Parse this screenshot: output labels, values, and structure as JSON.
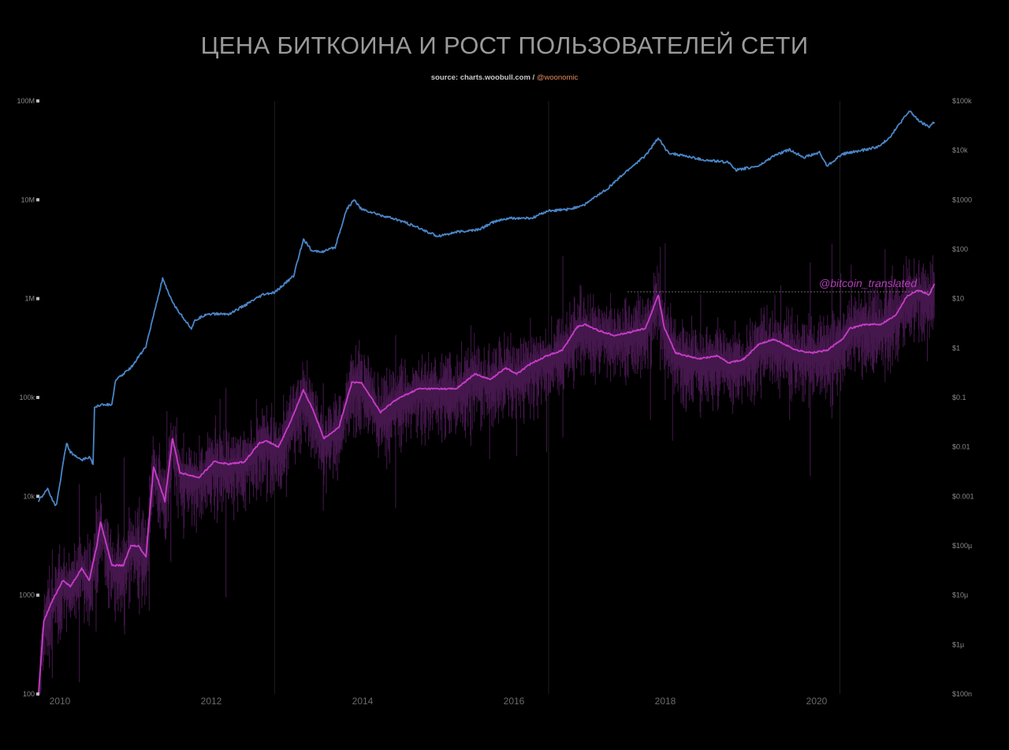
{
  "title": "ЦЕНА БИТКОИНА И РОСТ ПОЛЬЗОВАТЕЛЕЙ СЕТИ",
  "subtitle": {
    "source": "source: charts.woobull.com /",
    "handle": "@woonomic"
  },
  "watermark": "@bitcoin_translated",
  "colors": {
    "background": "#000000",
    "users_line": "#4a86c8",
    "price_line": "#c83cc8",
    "price_noise": "#4a1a52",
    "title": "#9a9a9a",
    "handle": "#e3875a"
  },
  "chart_data": {
    "type": "line",
    "title": "ЦЕНА БИТКОИНА И РОСТ ПОЛЬЗОВАТЕЛЕЙ СЕТИ",
    "x_ticks": [
      "2010",
      "2012",
      "2014",
      "2016",
      "2018",
      "2020"
    ],
    "y_left": {
      "scale": "log",
      "range": [
        100,
        100000000
      ],
      "ticks": [
        "100M",
        "10M",
        "1M",
        "100k",
        "10k",
        "1000",
        "100"
      ],
      "tick_values": [
        100000000,
        10000000,
        1000000,
        100000,
        10000,
        1000,
        100
      ]
    },
    "y_right": {
      "scale": "log",
      "range": [
        1e-07,
        100000
      ],
      "ticks": [
        "$100k",
        "$10k",
        "$1000",
        "$100",
        "$10",
        "$1",
        "$0.1",
        "$0.01",
        "$0.001",
        "$100µ",
        "$10µ",
        "$1µ",
        "$100n"
      ],
      "tick_values": [
        100000,
        10000,
        1000,
        100,
        10,
        1,
        0.1,
        0.01,
        0.001,
        0.0001,
        1e-05,
        1e-06,
        1e-07
      ]
    },
    "grid": false,
    "legend": "none",
    "series": [
      {
        "axis": "left",
        "x": [
          2009.78,
          2009.9,
          2010.0,
          2010.02,
          2010.15,
          2010.2,
          2010.35,
          2010.45,
          2010.5,
          2010.52,
          2010.6,
          2010.75,
          2010.8,
          2011.0,
          2011.2,
          2011.42,
          2011.5,
          2011.6,
          2011.8,
          2011.85,
          2012.0,
          2012.3,
          2012.5,
          2012.75,
          2012.9,
          2013.15,
          2013.28,
          2013.4,
          2013.55,
          2013.7,
          2013.85,
          2013.95,
          2014.05,
          2014.3,
          2014.6,
          2014.85,
          2015.05,
          2015.3,
          2015.6,
          2015.8,
          2016.0,
          2016.3,
          2016.5,
          2016.8,
          2017.0,
          2017.3,
          2017.6,
          2017.8,
          2017.97,
          2018.1,
          2018.3,
          2018.6,
          2018.9,
          2019.0,
          2019.3,
          2019.5,
          2019.7,
          2019.9,
          2020.1,
          2020.2,
          2020.4,
          2020.7,
          2020.9,
          2021.05,
          2021.2,
          2021.3,
          2021.35,
          2021.45,
          2021.55,
          2021.62
        ],
        "values": [
          9000,
          12000,
          8000,
          8500,
          35000,
          28000,
          23000,
          25000,
          21000,
          80000,
          85000,
          85000,
          150000,
          200000,
          330000,
          1600000,
          1100000,
          800000,
          500000,
          600000,
          700000,
          700000,
          850000,
          1100000,
          1150000,
          1700000,
          4000000,
          3000000,
          3000000,
          3300000,
          8000000,
          10000000,
          8000000,
          7000000,
          6000000,
          5000000,
          4300000,
          4700000,
          5000000,
          6000000,
          6500000,
          6500000,
          7700000,
          8000000,
          9000000,
          13000000,
          21000000,
          28000000,
          42000000,
          30000000,
          28000000,
          25000000,
          24000000,
          20000000,
          22000000,
          28000000,
          32000000,
          27000000,
          30000000,
          22000000,
          29000000,
          32000000,
          35000000,
          45000000,
          65000000,
          80000000,
          70000000,
          60000000,
          55000000,
          62000000
        ]
      },
      {
        "axis": "right",
        "x": [
          2009.78,
          2009.85,
          2009.95,
          2010.1,
          2010.2,
          2010.35,
          2010.45,
          2010.55,
          2010.6,
          2010.75,
          2010.9,
          2011.0,
          2011.1,
          2011.2,
          2011.3,
          2011.45,
          2011.55,
          2011.65,
          2011.9,
          2012.1,
          2012.3,
          2012.5,
          2012.7,
          2012.8,
          2012.95,
          2013.1,
          2013.28,
          2013.4,
          2013.55,
          2013.75,
          2013.92,
          2014.05,
          2014.3,
          2014.5,
          2014.8,
          2015.05,
          2015.3,
          2015.55,
          2015.75,
          2015.95,
          2016.1,
          2016.3,
          2016.5,
          2016.7,
          2016.9,
          2017.0,
          2017.2,
          2017.4,
          2017.6,
          2017.8,
          2017.97,
          2018.05,
          2018.2,
          2018.5,
          2018.75,
          2018.9,
          2019.1,
          2019.3,
          2019.5,
          2019.8,
          2020.0,
          2020.2,
          2020.4,
          2020.5,
          2020.7,
          2020.9,
          2021.1,
          2021.25,
          2021.4,
          2021.55,
          2021.62
        ],
        "values": [
          1e-07,
          3e-06,
          7e-06,
          2e-05,
          1.5e-05,
          3.5e-05,
          2e-05,
          0.0001,
          0.0003,
          4e-05,
          4e-05,
          0.0001,
          0.0001,
          6e-05,
          0.004,
          0.0008,
          0.015,
          0.003,
          0.0024,
          0.005,
          0.0045,
          0.005,
          0.012,
          0.013,
          0.01,
          0.03,
          0.14,
          0.06,
          0.015,
          0.025,
          0.2,
          0.2,
          0.05,
          0.09,
          0.15,
          0.15,
          0.15,
          0.3,
          0.23,
          0.4,
          0.3,
          0.5,
          0.7,
          0.9,
          2.7,
          3.0,
          2.2,
          1.8,
          2.1,
          2.5,
          12,
          2.5,
          0.8,
          0.6,
          0.7,
          0.5,
          0.6,
          1.2,
          1.5,
          0.9,
          0.8,
          0.9,
          1.5,
          2.5,
          3.0,
          3.0,
          4.5,
          11,
          15,
          12,
          20
        ]
      }
    ]
  }
}
